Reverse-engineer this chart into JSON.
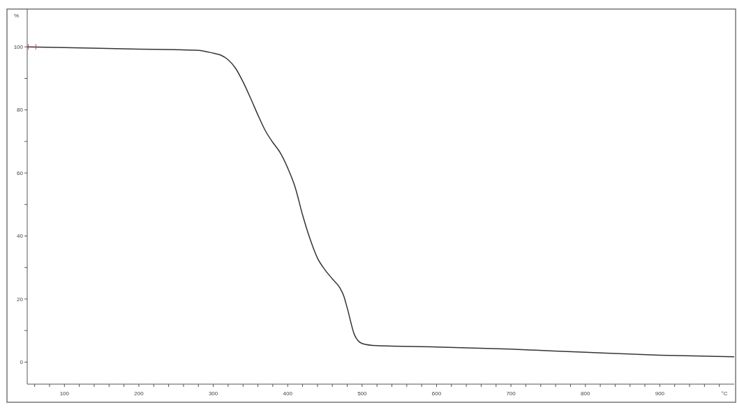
{
  "chart_data": {
    "type": "line",
    "xlabel": "°C",
    "ylabel": "%",
    "xlim": [
      50,
      1000
    ],
    "ylim": [
      -7,
      112
    ],
    "xticks": [
      {
        "value": 60,
        "label": null
      },
      {
        "value": 80,
        "label": null
      },
      100,
      {
        "value": 120,
        "label": null
      },
      {
        "value": 140,
        "label": null
      },
      {
        "value": 160,
        "label": null
      },
      {
        "value": 180,
        "label": null
      },
      200,
      {
        "value": 220,
        "label": null
      },
      {
        "value": 240,
        "label": null
      },
      {
        "value": 260,
        "label": null
      },
      {
        "value": 280,
        "label": null
      },
      300,
      {
        "value": 320,
        "label": null
      },
      {
        "value": 340,
        "label": null
      },
      {
        "value": 360,
        "label": null
      },
      {
        "value": 380,
        "label": null
      },
      400,
      {
        "value": 420,
        "label": null
      },
      {
        "value": 440,
        "label": null
      },
      {
        "value": 460,
        "label": null
      },
      {
        "value": 480,
        "label": null
      },
      500,
      {
        "value": 520,
        "label": null
      },
      {
        "value": 540,
        "label": null
      },
      {
        "value": 560,
        "label": null
      },
      {
        "value": 580,
        "label": null
      },
      600,
      {
        "value": 620,
        "label": null
      },
      {
        "value": 640,
        "label": null
      },
      {
        "value": 660,
        "label": null
      },
      {
        "value": 680,
        "label": null
      },
      700,
      {
        "value": 720,
        "label": null
      },
      {
        "value": 740,
        "label": null
      },
      {
        "value": 760,
        "label": null
      },
      {
        "value": 780,
        "label": null
      },
      800,
      {
        "value": 820,
        "label": null
      },
      {
        "value": 840,
        "label": null
      },
      {
        "value": 860,
        "label": null
      },
      {
        "value": 880,
        "label": null
      },
      900,
      {
        "value": 920,
        "label": null
      },
      {
        "value": 940,
        "label": null
      },
      {
        "value": 960,
        "label": null
      },
      {
        "value": 980,
        "label": null
      }
    ],
    "yticks": [
      0,
      {
        "value": 10,
        "label": null
      },
      20,
      {
        "value": 30,
        "label": null
      },
      40,
      {
        "value": 50,
        "label": null
      },
      60,
      {
        "value": 70,
        "label": null
      },
      80,
      {
        "value": 90,
        "label": null
      },
      100
    ],
    "grid": false,
    "marker": "none",
    "line_style": "solid",
    "series": [
      {
        "color": "#333333",
        "x": [
          50,
          100,
          200,
          250,
          280,
          300,
          310,
          320,
          330,
          340,
          350,
          360,
          370,
          380,
          390,
          400,
          410,
          420,
          430,
          440,
          450,
          460,
          470,
          475,
          480,
          490,
          500,
          520,
          600,
          700,
          800,
          900,
          1000
        ],
        "values": [
          100,
          99.8,
          99.3,
          99.1,
          98.9,
          98,
          97.4,
          95.9,
          93.2,
          88.9,
          83.8,
          78.4,
          73.4,
          69.7,
          66.4,
          61.6,
          55.5,
          46.7,
          39.1,
          33,
          29.3,
          26.4,
          23.6,
          21.2,
          17.2,
          8.5,
          5.9,
          5.2,
          4.8,
          4.1,
          3.1,
          2.2,
          1.7
        ]
      }
    ]
  }
}
